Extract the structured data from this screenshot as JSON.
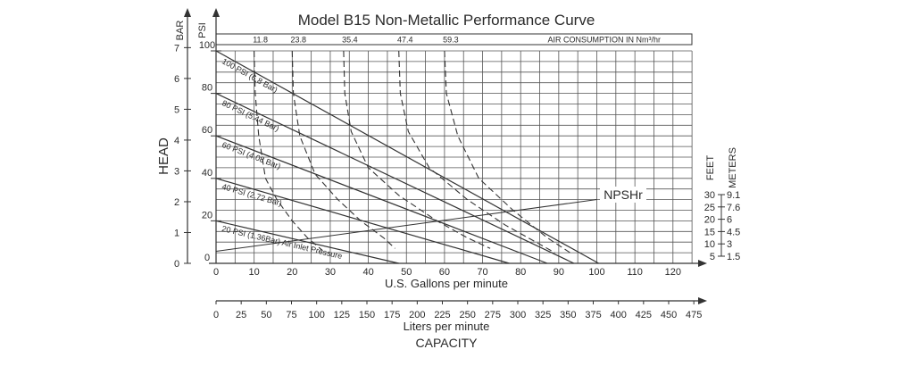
{
  "chart_data": {
    "type": "line",
    "title": "Model B15 Non-Metallic Performance Curve",
    "x_axis": {
      "label": "U.S. Gallons per minute",
      "range": [
        0,
        125
      ],
      "ticks": [
        "0",
        "10",
        "20",
        "30",
        "40",
        "50",
        "60",
        "70",
        "80",
        "90",
        "100",
        "110",
        "120"
      ]
    },
    "liters_axis": {
      "label": "Liters per minute",
      "ticks": [
        "0",
        "25",
        "50",
        "75",
        "100",
        "125",
        "150",
        "175",
        "200",
        "225",
        "250",
        "275",
        "300",
        "325",
        "350",
        "375",
        "400",
        "425",
        "450",
        "475"
      ]
    },
    "capacity_label": "CAPACITY",
    "y_axis_psi": {
      "unit": "PSI",
      "range": [
        0,
        100
      ],
      "ticks": [
        "0",
        "20",
        "40",
        "60",
        "80",
        "100"
      ]
    },
    "y_axis_bar": {
      "unit": "BAR",
      "ticks": [
        "0",
        "1",
        "2",
        "3",
        "4",
        "5",
        "6",
        "7"
      ]
    },
    "head_label": "HEAD",
    "npsh_axis": {
      "feet_label": "FEET",
      "meters_label": "METERS",
      "feet_ticks": [
        "5",
        "10",
        "15",
        "20",
        "25",
        "30"
      ],
      "meters_ticks": [
        "1.5",
        "3",
        "4.5",
        "6",
        "7.6",
        "9.1"
      ],
      "feet_values": [
        5,
        10,
        15,
        20,
        25,
        30
      ]
    },
    "air_consumption": {
      "label": "AIR CONSUMPTION IN Nm³/hr",
      "ticks": [
        "11.8",
        "23.8",
        "35.4",
        "47.4",
        "59.3"
      ],
      "curves": [
        {
          "label": "11.8",
          "x": [
            10,
            10.3,
            11.2,
            13,
            16,
            20,
            24,
            28
          ],
          "y": [
            100,
            80,
            60,
            40,
            30,
            20,
            12,
            6
          ]
        },
        {
          "label": "23.8",
          "x": [
            20,
            20.3,
            22,
            26,
            32,
            38,
            44,
            47
          ],
          "y": [
            100,
            80,
            60,
            42,
            30,
            20,
            12,
            7
          ]
        },
        {
          "label": "35.4",
          "x": [
            33.5,
            33.8,
            35.5,
            40,
            48,
            58,
            66,
            72
          ],
          "y": [
            100,
            80,
            62,
            45,
            32,
            20,
            12,
            7
          ]
        },
        {
          "label": "47.4",
          "x": [
            48,
            48.4,
            50.5,
            56,
            66,
            76,
            84,
            89
          ],
          "y": [
            100,
            80,
            62,
            45,
            30,
            18,
            10,
            5
          ]
        },
        {
          "label": "59.3",
          "x": [
            60,
            60.5,
            63.5,
            69,
            78,
            87,
            93
          ],
          "y": [
            100,
            80,
            60,
            40,
            25,
            12,
            5
          ]
        }
      ]
    },
    "series": [
      {
        "name": "100 PSI (6.8 Bar)",
        "x": [
          0,
          100.5
        ],
        "y": [
          100,
          0
        ]
      },
      {
        "name": "80 PSI (5.44 Bar)",
        "x": [
          0,
          94
        ],
        "y": [
          80,
          0
        ]
      },
      {
        "name": "60 PSI (4.08 Bar)",
        "x": [
          0,
          87
        ],
        "y": [
          60,
          0
        ]
      },
      {
        "name": "40 PSI (2.72 Bar)",
        "x": [
          0,
          77
        ],
        "y": [
          40,
          0
        ]
      },
      {
        "name": "20 PSI (1.36Bar) Air Inlet Pressure",
        "x": [
          0,
          48
        ],
        "y": [
          20,
          0
        ]
      }
    ],
    "npshr": {
      "name": "NPSHr",
      "x": [
        0,
        100
      ],
      "y": [
        7,
        28
      ]
    },
    "grid": true
  }
}
